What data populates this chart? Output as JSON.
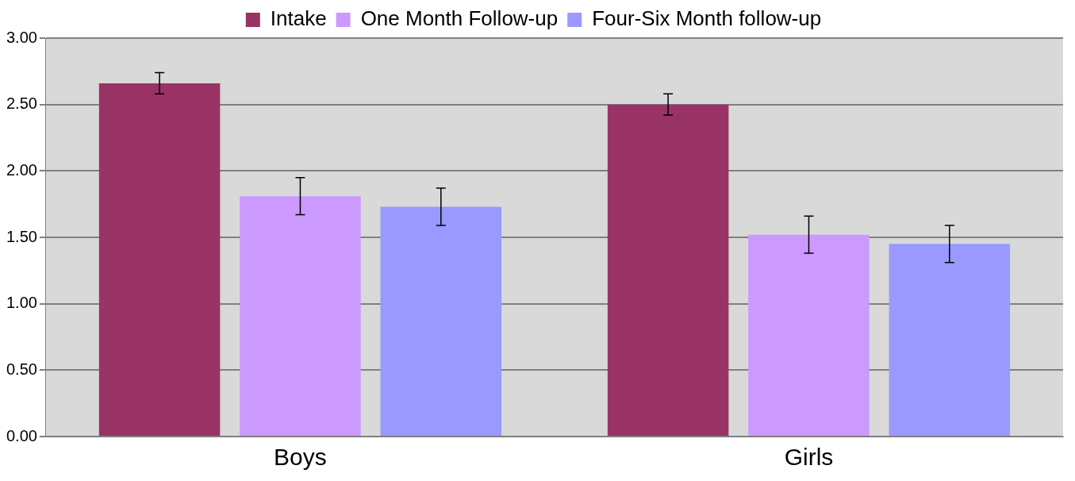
{
  "chart_data": {
    "type": "bar",
    "categories": [
      "Boys",
      "Girls"
    ],
    "series": [
      {
        "name": "Intake",
        "color": "#993366",
        "values": [
          2.66,
          2.5
        ],
        "errors": [
          0.08,
          0.08
        ]
      },
      {
        "name": "One Month Follow-up",
        "color": "#cc99ff",
        "values": [
          1.81,
          1.52
        ],
        "errors": [
          0.14,
          0.14
        ]
      },
      {
        "name": "Four-Six Month follow-up",
        "color": "#9999ff",
        "values": [
          1.73,
          1.45
        ],
        "errors": [
          0.14,
          0.14
        ]
      }
    ],
    "ylim": [
      0,
      3
    ],
    "yticks": [
      {
        "value": 0,
        "label": "0.00"
      },
      {
        "value": 0.5,
        "label": "0.50"
      },
      {
        "value": 1,
        "label": "1.00"
      },
      {
        "value": 1.5,
        "label": "1.50"
      },
      {
        "value": 2,
        "label": "2.00"
      },
      {
        "value": 2.5,
        "label": "2.50"
      },
      {
        "value": 3,
        "label": "3.00"
      }
    ],
    "grid": "y",
    "legend": "top"
  }
}
